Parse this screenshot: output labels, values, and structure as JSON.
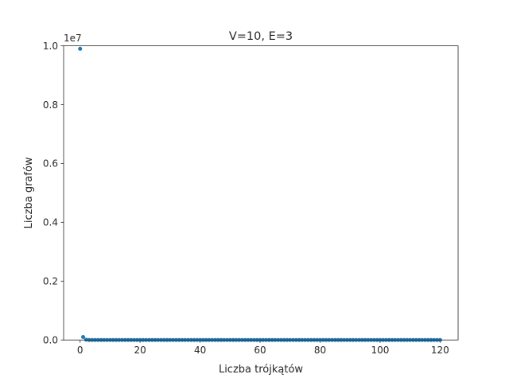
{
  "chart_data": {
    "type": "scatter",
    "title": "V=10, E=3",
    "xlabel": "Liczba trójkątów",
    "ylabel": "Liczba grafów",
    "y_scale_label": "1e7",
    "xlim": [
      -5.5,
      126
    ],
    "ylim": [
      0,
      1.0
    ],
    "y_multiplier": 10000000,
    "xticks": [
      0,
      20,
      40,
      60,
      80,
      100,
      120
    ],
    "xtick_labels": [
      "0",
      "20",
      "40",
      "60",
      "80",
      "100",
      "120"
    ],
    "yticks": [
      0,
      0.2,
      0.4,
      0.6,
      0.8,
      1.0
    ],
    "ytick_labels": [
      "0.0",
      "0.2",
      "0.4",
      "0.6",
      "0.8",
      "1.0"
    ],
    "grid": false,
    "point_color": "#1f77b4",
    "series": [
      {
        "x": [
          0,
          1,
          2,
          3,
          4,
          5,
          6,
          7,
          8,
          9,
          10,
          11,
          12,
          13,
          14,
          15,
          16,
          17,
          18,
          19,
          20,
          21,
          22,
          23,
          24,
          25,
          26,
          27,
          28,
          29,
          30,
          31,
          32,
          33,
          34,
          35,
          36,
          37,
          38,
          39,
          40,
          41,
          42,
          43,
          44,
          45,
          46,
          47,
          48,
          49,
          50,
          51,
          52,
          53,
          54,
          55,
          56,
          57,
          58,
          59,
          60,
          61,
          62,
          63,
          64,
          65,
          66,
          67,
          68,
          69,
          70,
          71,
          72,
          73,
          74,
          75,
          76,
          77,
          78,
          79,
          80,
          81,
          82,
          83,
          84,
          85,
          86,
          87,
          88,
          89,
          90,
          91,
          92,
          93,
          94,
          95,
          96,
          97,
          98,
          99,
          100,
          101,
          102,
          103,
          104,
          105,
          106,
          107,
          108,
          109,
          110,
          111,
          112,
          113,
          114,
          115,
          116,
          117,
          118,
          119,
          120
        ],
        "y": [
          0.99,
          0.01,
          0.001,
          0,
          0,
          0,
          0,
          0,
          0,
          0,
          0,
          0,
          0,
          0,
          0,
          0,
          0,
          0,
          0,
          0,
          0,
          0,
          0,
          0,
          0,
          0,
          0,
          0,
          0,
          0,
          0,
          0,
          0,
          0,
          0,
          0,
          0,
          0,
          0,
          0,
          0,
          0,
          0,
          0,
          0,
          0,
          0,
          0,
          0,
          0,
          0,
          0,
          0,
          0,
          0,
          0,
          0,
          0,
          0,
          0,
          0,
          0,
          0,
          0,
          0,
          0,
          0,
          0,
          0,
          0,
          0,
          0,
          0,
          0,
          0,
          0,
          0,
          0,
          0,
          0,
          0,
          0,
          0,
          0,
          0,
          0,
          0,
          0,
          0,
          0,
          0,
          0,
          0,
          0,
          0,
          0,
          0,
          0,
          0,
          0,
          0,
          0,
          0,
          0,
          0,
          0,
          0,
          0,
          0,
          0,
          0,
          0,
          0,
          0,
          0,
          0,
          0,
          0,
          0,
          0,
          0
        ]
      }
    ]
  }
}
